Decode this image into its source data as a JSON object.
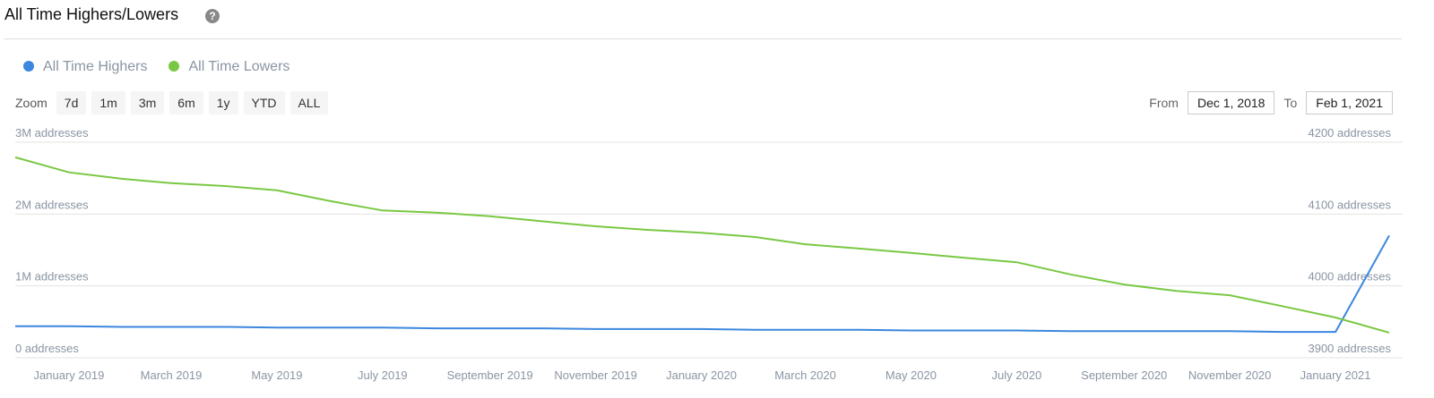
{
  "header": {
    "title": "All Time Highers/Lowers"
  },
  "zoom": {
    "label": "Zoom",
    "buttons": [
      "7d",
      "1m",
      "3m",
      "6m",
      "1y",
      "YTD",
      "ALL"
    ]
  },
  "range": {
    "from_label": "From",
    "from": "Dec 1, 2018",
    "to_label": "To",
    "to": "Feb 1, 2021"
  },
  "chart_data": {
    "type": "line",
    "x": [
      "2018-12",
      "2019-01",
      "2019-02",
      "2019-03",
      "2019-04",
      "2019-05",
      "2019-06",
      "2019-07",
      "2019-08",
      "2019-09",
      "2019-10",
      "2019-11",
      "2019-12",
      "2020-01",
      "2020-02",
      "2020-03",
      "2020-04",
      "2020-05",
      "2020-06",
      "2020-07",
      "2020-08",
      "2020-09",
      "2020-10",
      "2020-11",
      "2020-12",
      "2021-01",
      "2021-02"
    ],
    "xlim": [
      "2018-12",
      "2021-02"
    ],
    "xticks": [
      {
        "value": "2019-01",
        "label": "January 2019"
      },
      {
        "value": "2019-03",
        "label": "March 2019"
      },
      {
        "value": "2019-05",
        "label": "May 2019"
      },
      {
        "value": "2019-07",
        "label": "July 2019"
      },
      {
        "value": "2019-09",
        "label": "September 2019"
      },
      {
        "value": "2019-11",
        "label": "November 2019"
      },
      {
        "value": "2020-01",
        "label": "January 2020"
      },
      {
        "value": "2020-03",
        "label": "March 2020"
      },
      {
        "value": "2020-05",
        "label": "May 2020"
      },
      {
        "value": "2020-07",
        "label": "July 2020"
      },
      {
        "value": "2020-09",
        "label": "September 2020"
      },
      {
        "value": "2020-11",
        "label": "November 2020"
      },
      {
        "value": "2021-01",
        "label": "January 2021"
      }
    ],
    "ylim": [
      0,
      3000000
    ],
    "yticks": [
      {
        "value": 0,
        "label": "0 addresses"
      },
      {
        "value": 1000000,
        "label": "1M addresses"
      },
      {
        "value": 2000000,
        "label": "2M addresses"
      },
      {
        "value": 3000000,
        "label": "3M addresses"
      }
    ],
    "y2lim": [
      3900,
      4200
    ],
    "y2ticks": [
      {
        "value": 3900,
        "label": "3900 addresses"
      },
      {
        "value": 4000,
        "label": "4000 addresses"
      },
      {
        "value": 4100,
        "label": "4100 addresses"
      },
      {
        "value": 4200,
        "label": "4200 addresses"
      }
    ],
    "grid": true,
    "legend": "top-left",
    "series": [
      {
        "name": "All Time Highers",
        "color": "#3b87de",
        "axis": "y2",
        "values": [
          3944,
          3944,
          3943,
          3943,
          3943,
          3942,
          3942,
          3942,
          3941,
          3941,
          3941,
          3940,
          3940,
          3940,
          3939,
          3939,
          3939,
          3938,
          3938,
          3938,
          3937,
          3937,
          3937,
          3937,
          3936,
          3936,
          4070
        ]
      },
      {
        "name": "All Time Lowers",
        "color": "#79c843",
        "values": [
          2790000,
          2580000,
          2490000,
          2430000,
          2390000,
          2330000,
          2180000,
          2050000,
          2020000,
          1970000,
          1900000,
          1830000,
          1780000,
          1740000,
          1680000,
          1580000,
          1520000,
          1460000,
          1390000,
          1330000,
          1160000,
          1020000,
          930000,
          870000,
          720000,
          560000,
          350000
        ]
      }
    ]
  }
}
